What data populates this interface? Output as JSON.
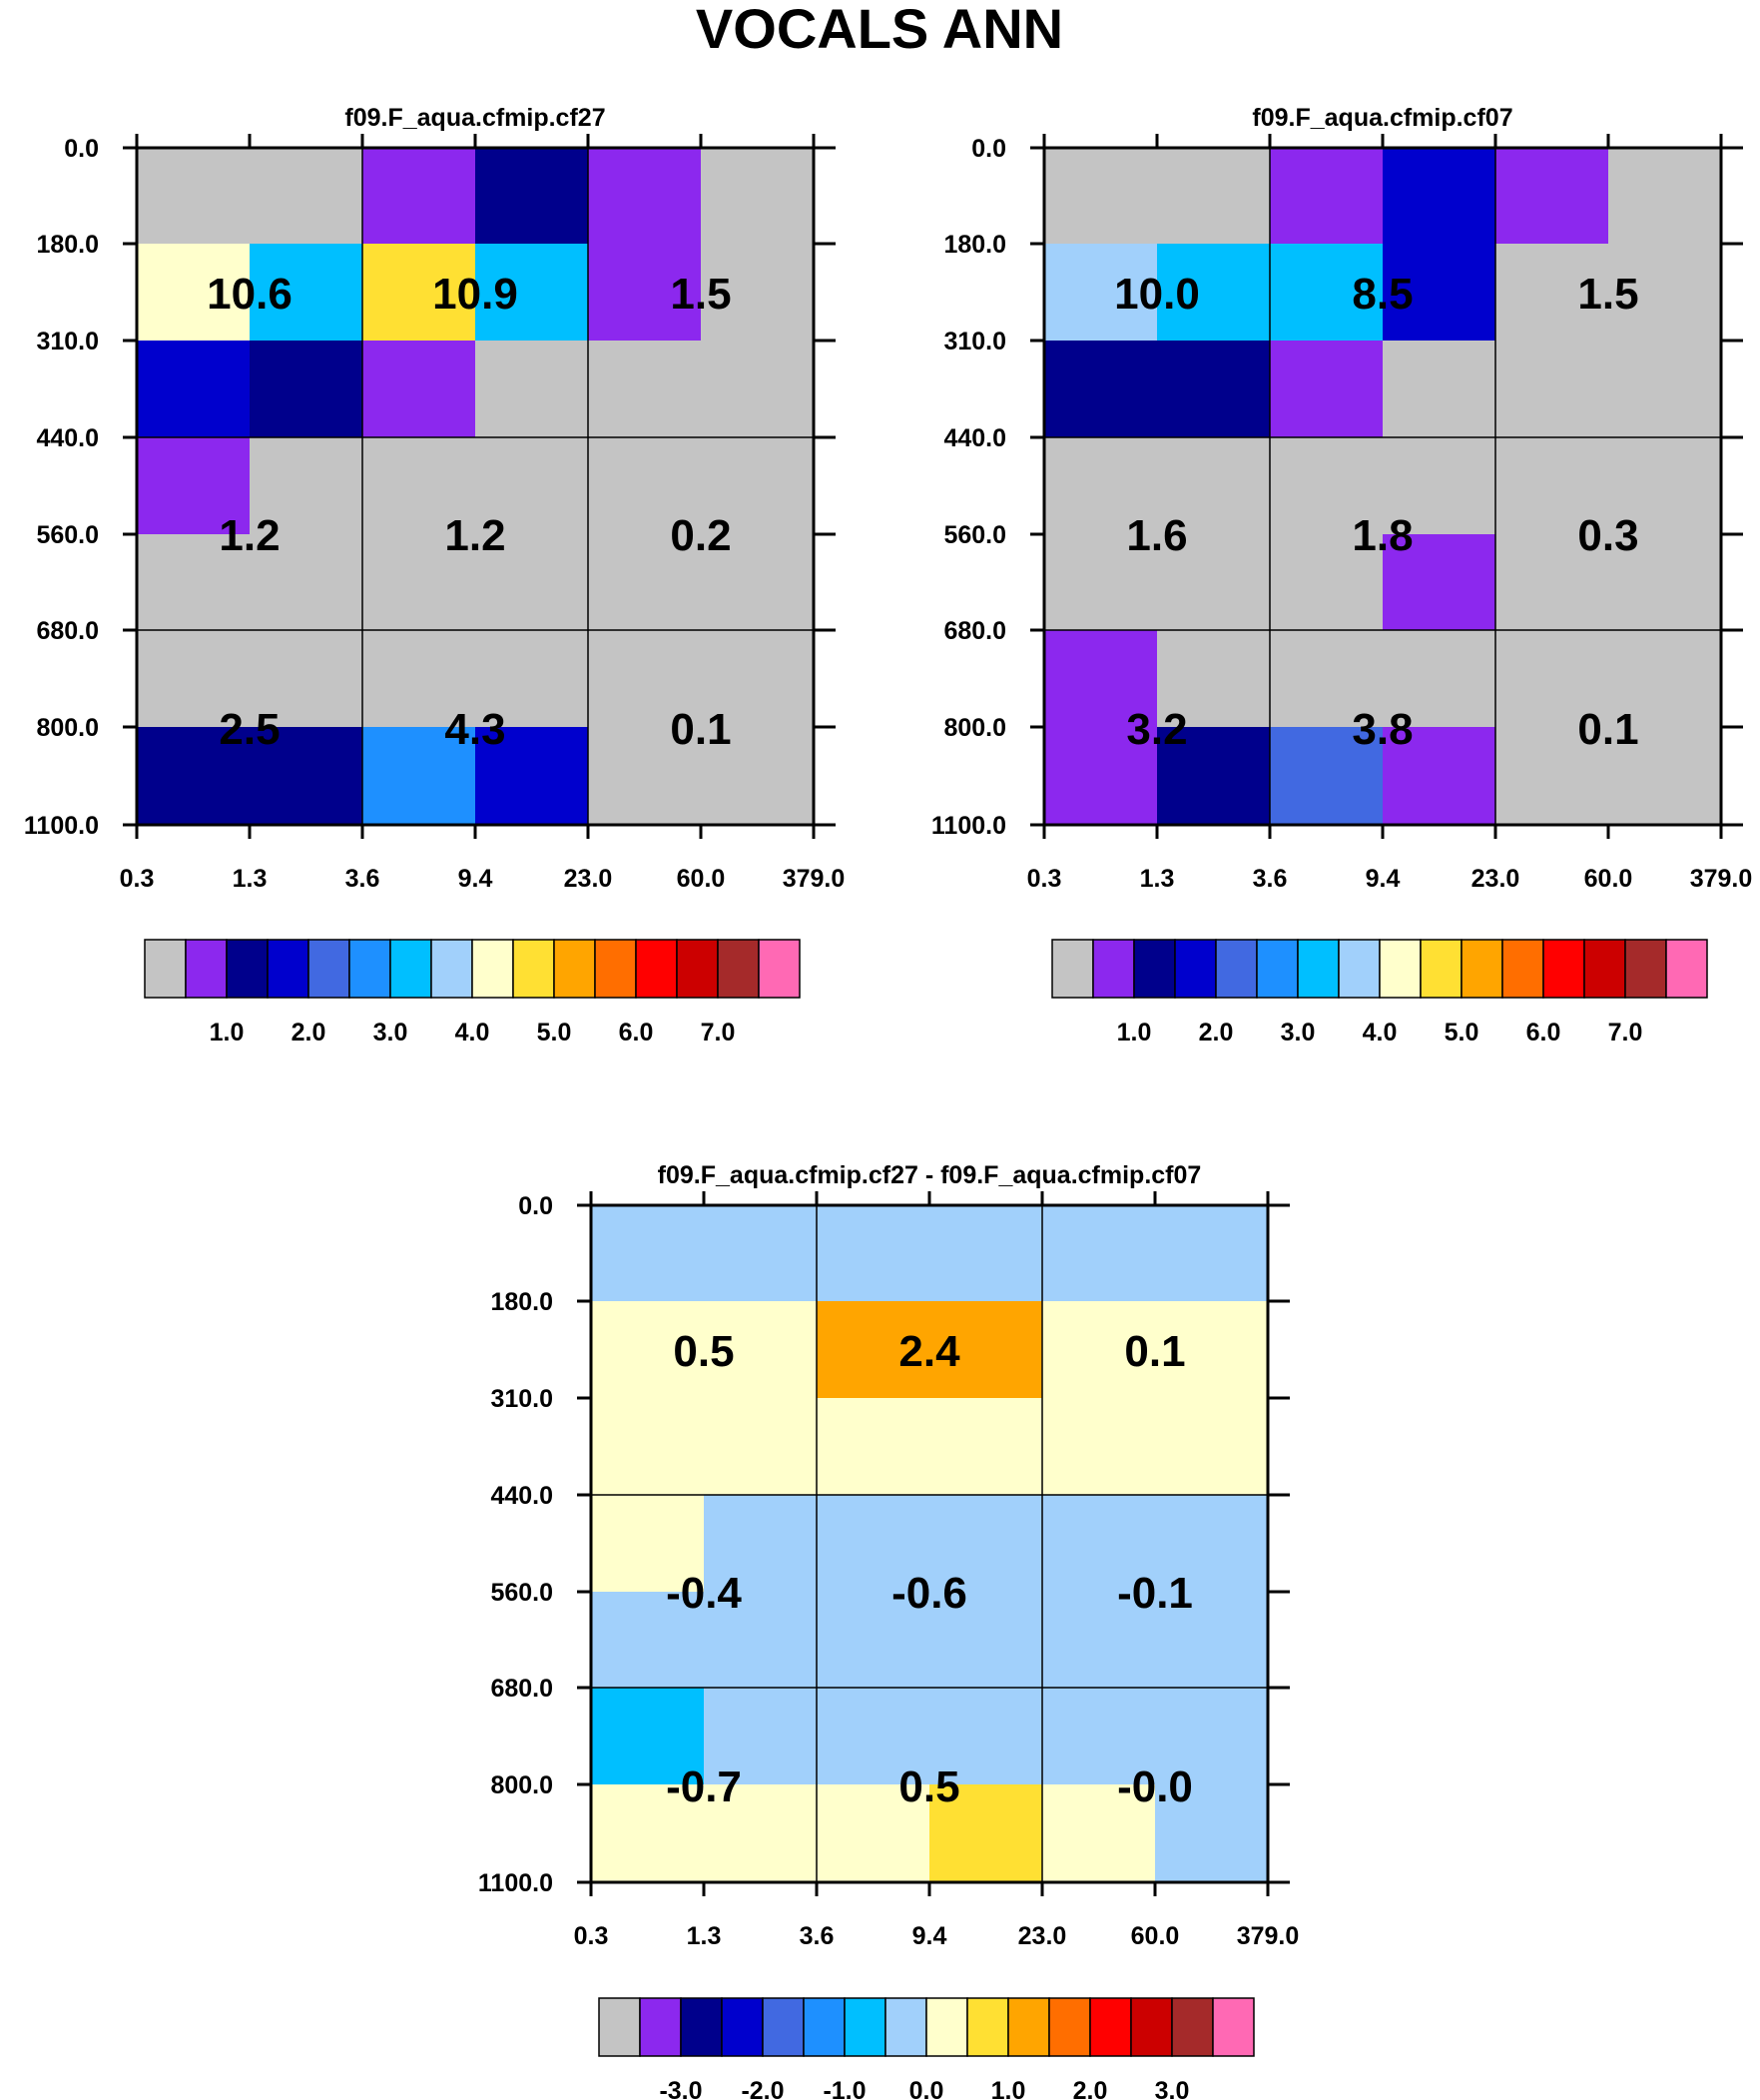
{
  "title": "VOCALS ANN",
  "palette": [
    "#c4c4c4",
    "#8c28ee",
    "#00008c",
    "#0000cd",
    "#4169e1",
    "#1e90ff",
    "#00bfff",
    "#a1d0fb",
    "#ffffcc",
    "#ffe033",
    "#ffa500",
    "#ff6e00",
    "#ff0000",
    "#cc0000",
    "#a52a2a",
    "#ff69b4"
  ],
  "chart_data": [
    {
      "type": "heatmap",
      "title": "f09.F_aqua.cfmip.cf27",
      "x_ticks": [
        "0.3",
        "1.3",
        "3.6",
        "9.4",
        "23.0",
        "60.0",
        "379.0"
      ],
      "y_ticks": [
        "0.0",
        "180.0",
        "310.0",
        "440.0",
        "560.0",
        "680.0",
        "800.0",
        "1100.0"
      ],
      "cells": [
        [
          0,
          0,
          1,
          2,
          1,
          0
        ],
        [
          8,
          6,
          9,
          6,
          1,
          0
        ],
        [
          3,
          2,
          1,
          0,
          0,
          0
        ],
        [
          1,
          0,
          0,
          0,
          0,
          0
        ],
        [
          0,
          0,
          0,
          0,
          0,
          0
        ],
        [
          0,
          0,
          0,
          0,
          0,
          0
        ],
        [
          2,
          2,
          5,
          3,
          0,
          0
        ]
      ],
      "block_labels": [
        [
          "10.6",
          "10.9",
          "1.5"
        ],
        [
          "1.2",
          "1.2",
          "0.2"
        ],
        [
          "2.5",
          "4.3",
          "0.1"
        ]
      ],
      "colorbar_labels": [
        "1.0",
        "2.0",
        "3.0",
        "4.0",
        "5.0",
        "6.0",
        "7.0"
      ]
    },
    {
      "type": "heatmap",
      "title": "f09.F_aqua.cfmip.cf07",
      "x_ticks": [
        "0.3",
        "1.3",
        "3.6",
        "9.4",
        "23.0",
        "60.0",
        "379.0"
      ],
      "y_ticks": [
        "0.0",
        "180.0",
        "310.0",
        "440.0",
        "560.0",
        "680.0",
        "800.0",
        "1100.0"
      ],
      "cells": [
        [
          0,
          0,
          1,
          3,
          1,
          0
        ],
        [
          7,
          6,
          6,
          3,
          0,
          0
        ],
        [
          2,
          2,
          1,
          0,
          0,
          0
        ],
        [
          0,
          0,
          0,
          0,
          0,
          0
        ],
        [
          0,
          0,
          0,
          1,
          0,
          0
        ],
        [
          1,
          0,
          0,
          0,
          0,
          0
        ],
        [
          1,
          2,
          4,
          1,
          0,
          0
        ]
      ],
      "block_labels": [
        [
          "10.0",
          "8.5",
          "1.5"
        ],
        [
          "1.6",
          "1.8",
          "0.3"
        ],
        [
          "3.2",
          "3.8",
          "0.1"
        ]
      ],
      "colorbar_labels": [
        "1.0",
        "2.0",
        "3.0",
        "4.0",
        "5.0",
        "6.0",
        "7.0"
      ]
    },
    {
      "type": "heatmap",
      "title": "f09.F_aqua.cfmip.cf27 - f09.F_aqua.cfmip.cf07",
      "x_ticks": [
        "0.3",
        "1.3",
        "3.6",
        "9.4",
        "23.0",
        "60.0",
        "379.0"
      ],
      "y_ticks": [
        "0.0",
        "180.0",
        "310.0",
        "440.0",
        "560.0",
        "680.0",
        "800.0",
        "1100.0"
      ],
      "cells": [
        [
          7,
          7,
          7,
          7,
          7,
          7
        ],
        [
          8,
          8,
          10,
          10,
          8,
          8
        ],
        [
          8,
          8,
          8,
          8,
          8,
          8
        ],
        [
          8,
          7,
          7,
          7,
          7,
          7
        ],
        [
          7,
          7,
          7,
          7,
          7,
          7
        ],
        [
          6,
          7,
          7,
          7,
          7,
          7
        ],
        [
          8,
          8,
          8,
          9,
          8,
          7
        ]
      ],
      "block_labels": [
        [
          "0.5",
          "2.4",
          "0.1"
        ],
        [
          "-0.4",
          "-0.6",
          "-0.1"
        ],
        [
          "-0.7",
          "0.5",
          "-0.0"
        ]
      ],
      "colorbar_labels": [
        "-3.0",
        "-2.0",
        "-1.0",
        "0.0",
        "1.0",
        "2.0",
        "3.0"
      ]
    }
  ]
}
